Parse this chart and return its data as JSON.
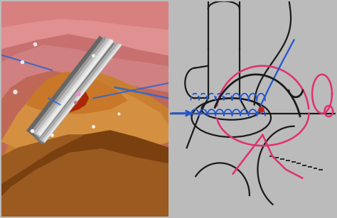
{
  "fig_width": 4.74,
  "fig_height": 3.07,
  "dpi": 100,
  "black": "#1a1a1a",
  "blue": "#2255cc",
  "blue_light": "#4477dd",
  "pink": "#e03070",
  "red_dot": "#cc2020",
  "border_color": "#bbbbbb"
}
